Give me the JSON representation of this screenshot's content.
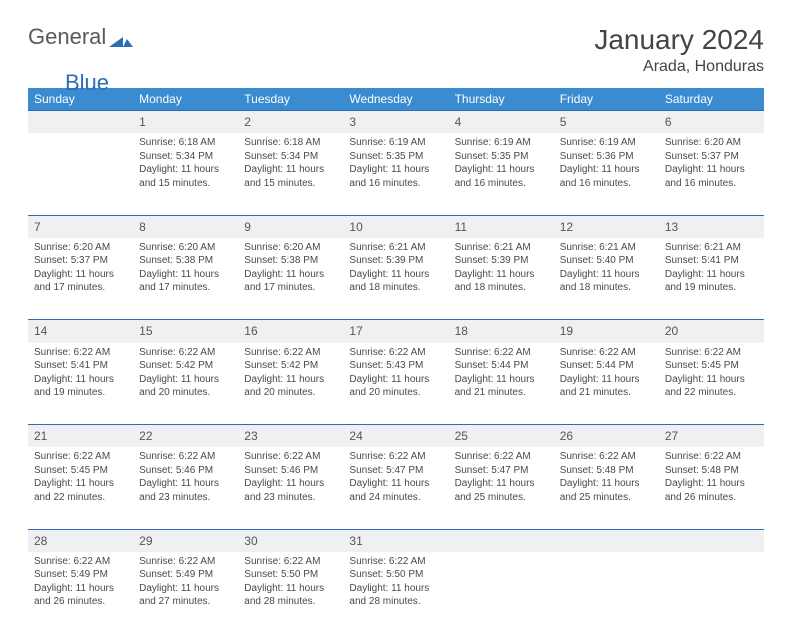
{
  "logo": {
    "word1": "General",
    "word2": "Blue"
  },
  "title": "January 2024",
  "location": "Arada, Honduras",
  "colors": {
    "header_bg": "#3a8bd0",
    "header_text": "#ffffff",
    "row_border": "#2a6fb5",
    "daynum_bg": "#eef0f2",
    "page_bg": "#ffffff",
    "body_text": "#4a4a4a",
    "title_text": "#444444",
    "logo_gray": "#5a5a5a",
    "logo_blue": "#2a6fb5"
  },
  "weekdays": [
    "Sunday",
    "Monday",
    "Tuesday",
    "Wednesday",
    "Thursday",
    "Friday",
    "Saturday"
  ],
  "weeks": [
    [
      null,
      {
        "n": "1",
        "sunrise": "Sunrise: 6:18 AM",
        "sunset": "Sunset: 5:34 PM",
        "daylight": "Daylight: 11 hours and 15 minutes."
      },
      {
        "n": "2",
        "sunrise": "Sunrise: 6:18 AM",
        "sunset": "Sunset: 5:34 PM",
        "daylight": "Daylight: 11 hours and 15 minutes."
      },
      {
        "n": "3",
        "sunrise": "Sunrise: 6:19 AM",
        "sunset": "Sunset: 5:35 PM",
        "daylight": "Daylight: 11 hours and 16 minutes."
      },
      {
        "n": "4",
        "sunrise": "Sunrise: 6:19 AM",
        "sunset": "Sunset: 5:35 PM",
        "daylight": "Daylight: 11 hours and 16 minutes."
      },
      {
        "n": "5",
        "sunrise": "Sunrise: 6:19 AM",
        "sunset": "Sunset: 5:36 PM",
        "daylight": "Daylight: 11 hours and 16 minutes."
      },
      {
        "n": "6",
        "sunrise": "Sunrise: 6:20 AM",
        "sunset": "Sunset: 5:37 PM",
        "daylight": "Daylight: 11 hours and 16 minutes."
      }
    ],
    [
      {
        "n": "7",
        "sunrise": "Sunrise: 6:20 AM",
        "sunset": "Sunset: 5:37 PM",
        "daylight": "Daylight: 11 hours and 17 minutes."
      },
      {
        "n": "8",
        "sunrise": "Sunrise: 6:20 AM",
        "sunset": "Sunset: 5:38 PM",
        "daylight": "Daylight: 11 hours and 17 minutes."
      },
      {
        "n": "9",
        "sunrise": "Sunrise: 6:20 AM",
        "sunset": "Sunset: 5:38 PM",
        "daylight": "Daylight: 11 hours and 17 minutes."
      },
      {
        "n": "10",
        "sunrise": "Sunrise: 6:21 AM",
        "sunset": "Sunset: 5:39 PM",
        "daylight": "Daylight: 11 hours and 18 minutes."
      },
      {
        "n": "11",
        "sunrise": "Sunrise: 6:21 AM",
        "sunset": "Sunset: 5:39 PM",
        "daylight": "Daylight: 11 hours and 18 minutes."
      },
      {
        "n": "12",
        "sunrise": "Sunrise: 6:21 AM",
        "sunset": "Sunset: 5:40 PM",
        "daylight": "Daylight: 11 hours and 18 minutes."
      },
      {
        "n": "13",
        "sunrise": "Sunrise: 6:21 AM",
        "sunset": "Sunset: 5:41 PM",
        "daylight": "Daylight: 11 hours and 19 minutes."
      }
    ],
    [
      {
        "n": "14",
        "sunrise": "Sunrise: 6:22 AM",
        "sunset": "Sunset: 5:41 PM",
        "daylight": "Daylight: 11 hours and 19 minutes."
      },
      {
        "n": "15",
        "sunrise": "Sunrise: 6:22 AM",
        "sunset": "Sunset: 5:42 PM",
        "daylight": "Daylight: 11 hours and 20 minutes."
      },
      {
        "n": "16",
        "sunrise": "Sunrise: 6:22 AM",
        "sunset": "Sunset: 5:42 PM",
        "daylight": "Daylight: 11 hours and 20 minutes."
      },
      {
        "n": "17",
        "sunrise": "Sunrise: 6:22 AM",
        "sunset": "Sunset: 5:43 PM",
        "daylight": "Daylight: 11 hours and 20 minutes."
      },
      {
        "n": "18",
        "sunrise": "Sunrise: 6:22 AM",
        "sunset": "Sunset: 5:44 PM",
        "daylight": "Daylight: 11 hours and 21 minutes."
      },
      {
        "n": "19",
        "sunrise": "Sunrise: 6:22 AM",
        "sunset": "Sunset: 5:44 PM",
        "daylight": "Daylight: 11 hours and 21 minutes."
      },
      {
        "n": "20",
        "sunrise": "Sunrise: 6:22 AM",
        "sunset": "Sunset: 5:45 PM",
        "daylight": "Daylight: 11 hours and 22 minutes."
      }
    ],
    [
      {
        "n": "21",
        "sunrise": "Sunrise: 6:22 AM",
        "sunset": "Sunset: 5:45 PM",
        "daylight": "Daylight: 11 hours and 22 minutes."
      },
      {
        "n": "22",
        "sunrise": "Sunrise: 6:22 AM",
        "sunset": "Sunset: 5:46 PM",
        "daylight": "Daylight: 11 hours and 23 minutes."
      },
      {
        "n": "23",
        "sunrise": "Sunrise: 6:22 AM",
        "sunset": "Sunset: 5:46 PM",
        "daylight": "Daylight: 11 hours and 23 minutes."
      },
      {
        "n": "24",
        "sunrise": "Sunrise: 6:22 AM",
        "sunset": "Sunset: 5:47 PM",
        "daylight": "Daylight: 11 hours and 24 minutes."
      },
      {
        "n": "25",
        "sunrise": "Sunrise: 6:22 AM",
        "sunset": "Sunset: 5:47 PM",
        "daylight": "Daylight: 11 hours and 25 minutes."
      },
      {
        "n": "26",
        "sunrise": "Sunrise: 6:22 AM",
        "sunset": "Sunset: 5:48 PM",
        "daylight": "Daylight: 11 hours and 25 minutes."
      },
      {
        "n": "27",
        "sunrise": "Sunrise: 6:22 AM",
        "sunset": "Sunset: 5:48 PM",
        "daylight": "Daylight: 11 hours and 26 minutes."
      }
    ],
    [
      {
        "n": "28",
        "sunrise": "Sunrise: 6:22 AM",
        "sunset": "Sunset: 5:49 PM",
        "daylight": "Daylight: 11 hours and 26 minutes."
      },
      {
        "n": "29",
        "sunrise": "Sunrise: 6:22 AM",
        "sunset": "Sunset: 5:49 PM",
        "daylight": "Daylight: 11 hours and 27 minutes."
      },
      {
        "n": "30",
        "sunrise": "Sunrise: 6:22 AM",
        "sunset": "Sunset: 5:50 PM",
        "daylight": "Daylight: 11 hours and 28 minutes."
      },
      {
        "n": "31",
        "sunrise": "Sunrise: 6:22 AM",
        "sunset": "Sunset: 5:50 PM",
        "daylight": "Daylight: 11 hours and 28 minutes."
      },
      null,
      null,
      null
    ]
  ]
}
